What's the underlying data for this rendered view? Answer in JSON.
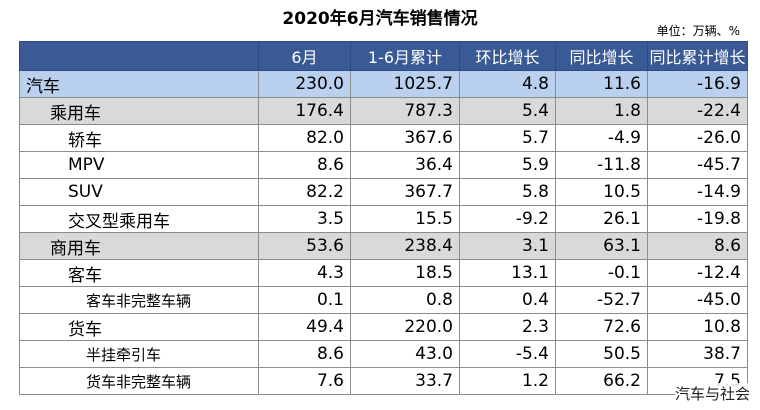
{
  "title": "2020年6月汽车销售情况",
  "unit": "单位：万辆、%",
  "columns": [
    "",
    "6月",
    "1-6月累计",
    "环比增长",
    "同比增长",
    "同比累计增长"
  ],
  "rows": [
    {
      "name": "汽车",
      "level": 0,
      "values": [
        "230.0",
        "1025.7",
        "4.8",
        "11.6",
        "-16.9"
      ]
    },
    {
      "name": "乘用车",
      "level": 1,
      "values": [
        "176.4",
        "787.3",
        "5.4",
        "1.8",
        "-22.4"
      ]
    },
    {
      "name": "轿车",
      "level": 2,
      "values": [
        "82.0",
        "367.6",
        "5.7",
        "-4.9",
        "-26.0"
      ]
    },
    {
      "name": "MPV",
      "level": 2,
      "values": [
        "8.6",
        "36.4",
        "5.9",
        "-11.8",
        "-45.7"
      ]
    },
    {
      "name": "SUV",
      "level": 2,
      "values": [
        "82.2",
        "367.7",
        "5.8",
        "10.5",
        "-14.9"
      ]
    },
    {
      "name": "交叉型乘用车",
      "level": 2,
      "values": [
        "3.5",
        "15.5",
        "-9.2",
        "26.1",
        "-19.8"
      ]
    },
    {
      "name": "商用车",
      "level": 1,
      "values": [
        "53.6",
        "238.4",
        "3.1",
        "63.1",
        "8.6"
      ]
    },
    {
      "name": "客车",
      "level": 2,
      "values": [
        "4.3",
        "18.5",
        "13.1",
        "-0.1",
        "-12.4"
      ]
    },
    {
      "name": "客车非完整车辆",
      "level": 3,
      "values": [
        "0.1",
        "0.8",
        "0.4",
        "-52.7",
        "-45.0"
      ]
    },
    {
      "name": "货车",
      "level": 2,
      "values": [
        "49.4",
        "220.0",
        "2.3",
        "72.6",
        "10.8"
      ]
    },
    {
      "name": "半挂牵引车",
      "level": 3,
      "values": [
        "8.6",
        "43.0",
        "-5.4",
        "50.5",
        "38.7"
      ]
    },
    {
      "name": "货车非完整车辆",
      "level": 3,
      "values": [
        "7.6",
        "33.7",
        "1.2",
        "66.2",
        "7.5"
      ]
    }
  ],
  "watermark": "汽车与社会",
  "colors": {
    "header_bg": "#3a5a95",
    "total_row_bg": "#b9d0ee",
    "group_row_bg": "#d9d9d9"
  }
}
